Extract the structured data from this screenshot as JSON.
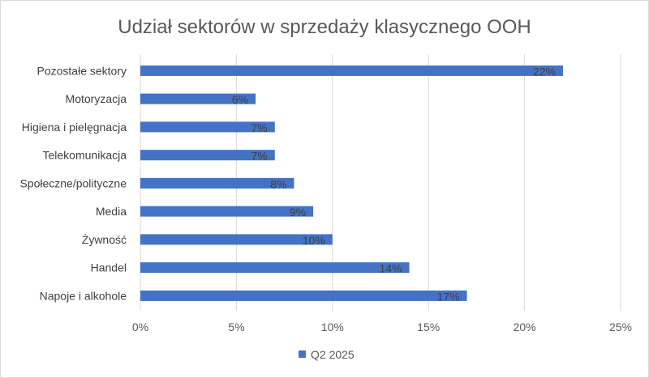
{
  "chart_data": {
    "type": "bar",
    "orientation": "horizontal",
    "title": "Udział sektorów w sprzedaży klasycznego OOH",
    "categories": [
      "Pozostałe sektory",
      "Motoryzacja",
      "Higiena i pielęgnacja",
      "Telekomunikacja",
      "Społeczne/polityczne",
      "Media",
      "Żywność",
      "Handel",
      "Napoje i alkohole"
    ],
    "series": [
      {
        "name": "Q2 2025",
        "values": [
          22,
          6,
          7,
          7,
          8,
          9,
          10,
          14,
          17
        ],
        "color": "#4472c4"
      }
    ],
    "data_labels": [
      "22%",
      "6%",
      "7%",
      "7%",
      "8%",
      "9%",
      "10%",
      "14%",
      "17%"
    ],
    "x_ticks": [
      "0%",
      "5%",
      "10%",
      "15%",
      "20%",
      "25%"
    ],
    "xlim": [
      0,
      25
    ],
    "grid": true,
    "legend_position": "bottom",
    "gridline_color": "#d9d9d9",
    "label_color": "#404040"
  }
}
